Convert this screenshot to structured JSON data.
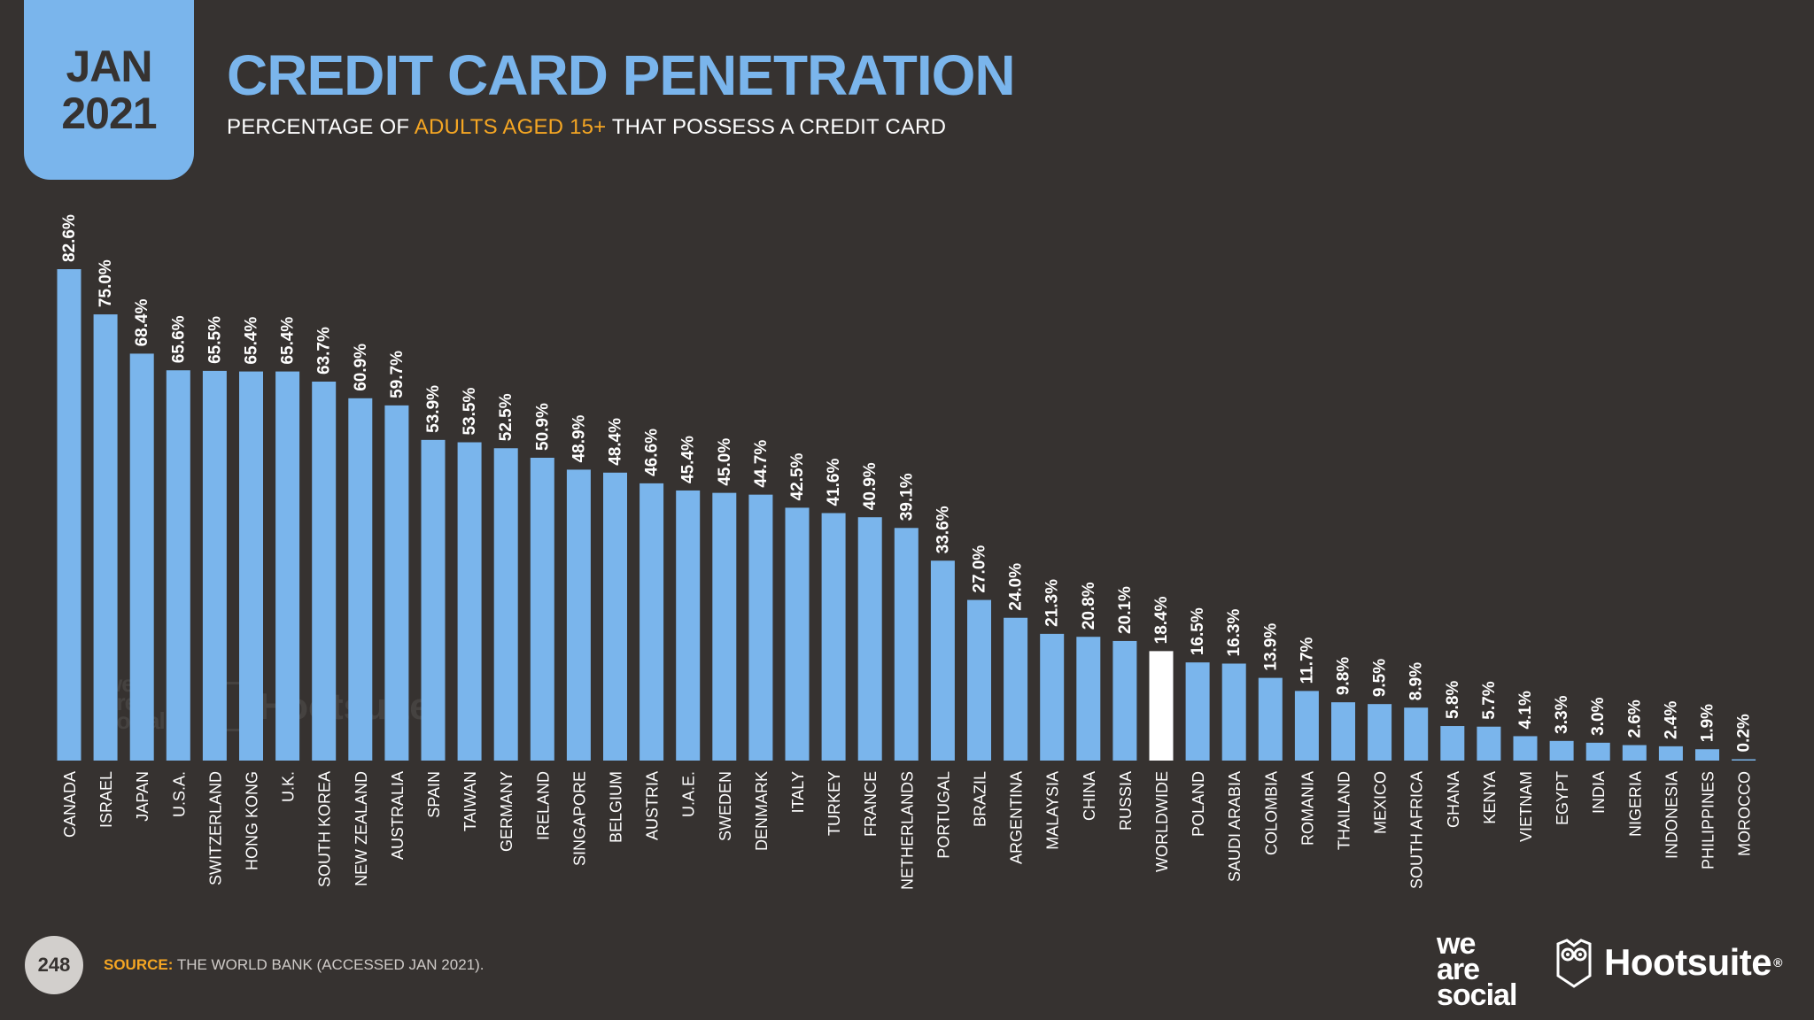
{
  "header": {
    "date_month": "JAN",
    "date_year": "2021",
    "title": "CREDIT CARD PENETRATION",
    "subtitle_pre": "PERCENTAGE OF ",
    "subtitle_highlight": "ADULTS AGED 15+",
    "subtitle_post": " THAT POSSESS A CREDIT CARD"
  },
  "footer": {
    "page_number": "248",
    "source_label": "SOURCE:",
    "source_text": " THE WORLD BANK (ACCESSED JAN 2021).",
    "logo_we_line1": "we",
    "logo_we_line2": "are",
    "logo_we_line3": "social",
    "logo_hootsuite": "Hootsuite",
    "logo_hootsuite_mark": "®"
  },
  "colors": {
    "background": "#363230",
    "bar": "#7ab5ec",
    "highlight_bar": "#ffffff",
    "accent": "#f5a623",
    "text": "#ffffff"
  },
  "chart_data": {
    "type": "bar",
    "title": "CREDIT CARD PENETRATION",
    "categories": [
      "CANADA",
      "ISRAEL",
      "JAPAN",
      "U.S.A.",
      "SWITZERLAND",
      "HONG KONG",
      "U.K.",
      "SOUTH KOREA",
      "NEW ZEALAND",
      "AUSTRALIA",
      "SPAIN",
      "TAIWAN",
      "GERMANY",
      "IRELAND",
      "SINGAPORE",
      "BELGIUM",
      "AUSTRIA",
      "U.A.E.",
      "SWEDEN",
      "DENMARK",
      "ITALY",
      "TURKEY",
      "FRANCE",
      "NETHERLANDS",
      "PORTUGAL",
      "BRAZIL",
      "ARGENTINA",
      "MALAYSIA",
      "CHINA",
      "RUSSIA",
      "WORLDWIDE",
      "POLAND",
      "SAUDI ARABIA",
      "COLOMBIA",
      "ROMANIA",
      "THAILAND",
      "MEXICO",
      "SOUTH AFRICA",
      "GHANA",
      "KENYA",
      "VIETNAM",
      "EGYPT",
      "INDIA",
      "NIGERIA",
      "INDONESIA",
      "PHILIPPINES",
      "MOROCCO"
    ],
    "values": [
      82.6,
      75.0,
      68.4,
      65.6,
      65.5,
      65.4,
      65.4,
      63.7,
      60.9,
      59.7,
      53.9,
      53.5,
      52.5,
      50.9,
      48.9,
      48.4,
      46.6,
      45.4,
      45.0,
      44.7,
      42.5,
      41.6,
      40.9,
      39.1,
      33.6,
      27.0,
      24.0,
      21.3,
      20.8,
      20.1,
      18.4,
      16.5,
      16.3,
      13.9,
      11.7,
      9.8,
      9.5,
      8.9,
      5.8,
      5.7,
      4.1,
      3.3,
      3.0,
      2.6,
      2.4,
      1.9,
      0.2
    ],
    "value_labels": [
      "82.6%",
      "75.0%",
      "68.4%",
      "65.6%",
      "65.5%",
      "65.4%",
      "65.4%",
      "63.7%",
      "60.9%",
      "59.7%",
      "53.9%",
      "53.5%",
      "52.5%",
      "50.9%",
      "48.9%",
      "48.4%",
      "46.6%",
      "45.4%",
      "45.0%",
      "44.7%",
      "42.5%",
      "41.6%",
      "40.9%",
      "39.1%",
      "33.6%",
      "27.0%",
      "24.0%",
      "21.3%",
      "20.8%",
      "20.1%",
      "18.4%",
      "16.5%",
      "16.3%",
      "13.9%",
      "11.7%",
      "9.8%",
      "9.5%",
      "8.9%",
      "5.8%",
      "5.7%",
      "4.1%",
      "3.3%",
      "3.0%",
      "2.6%",
      "2.4%",
      "1.9%",
      "0.2%"
    ],
    "highlight_category": "WORLDWIDE",
    "ylim": [
      0,
      82.6
    ],
    "grid": false,
    "legend": "none",
    "label_orientation": "vertical"
  }
}
